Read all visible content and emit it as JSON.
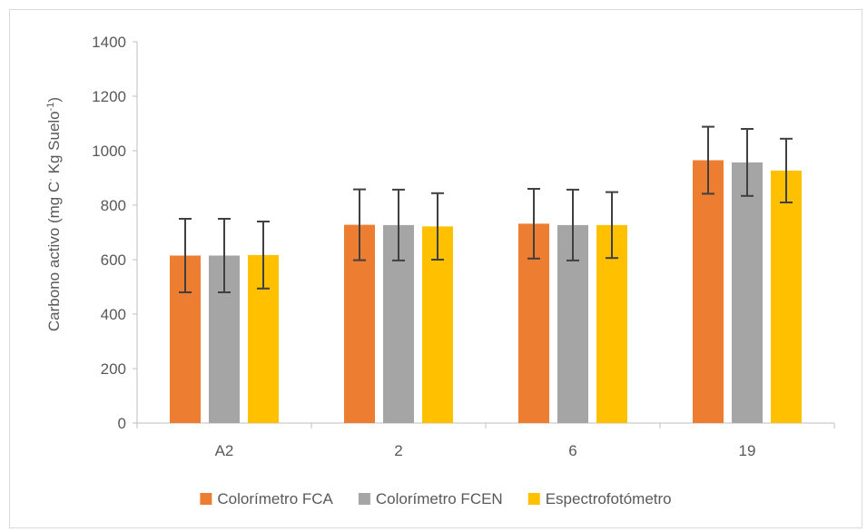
{
  "chart_data": {
    "type": "bar",
    "title": "",
    "xlabel": "",
    "ylabel": {
      "prefix": "Carbono activo (mg C",
      "dot": "·",
      "middle": " Kg Suelo",
      "sup": "-1",
      "suffix": ")"
    },
    "ylim": [
      0,
      1400
    ],
    "yticks": [
      0,
      200,
      400,
      600,
      800,
      1000,
      1200,
      1400
    ],
    "categories": [
      "A2",
      "2",
      "6",
      "19"
    ],
    "series": [
      {
        "name": "Colorímetro FCA",
        "color": "#ED7D31",
        "values": [
          615,
          728,
          732,
          965
        ],
        "error": [
          135,
          130,
          128,
          123
        ]
      },
      {
        "name": "Colorímetro FCEN",
        "color": "#A5A5A5",
        "values": [
          615,
          727,
          727,
          957
        ],
        "error": [
          135,
          130,
          130,
          123
        ]
      },
      {
        "name": "Espectrofotómetro",
        "color": "#FFC000",
        "values": [
          617,
          722,
          727,
          927
        ],
        "error": [
          123,
          122,
          121,
          117
        ]
      }
    ],
    "grid": false,
    "legend": "bottom"
  }
}
